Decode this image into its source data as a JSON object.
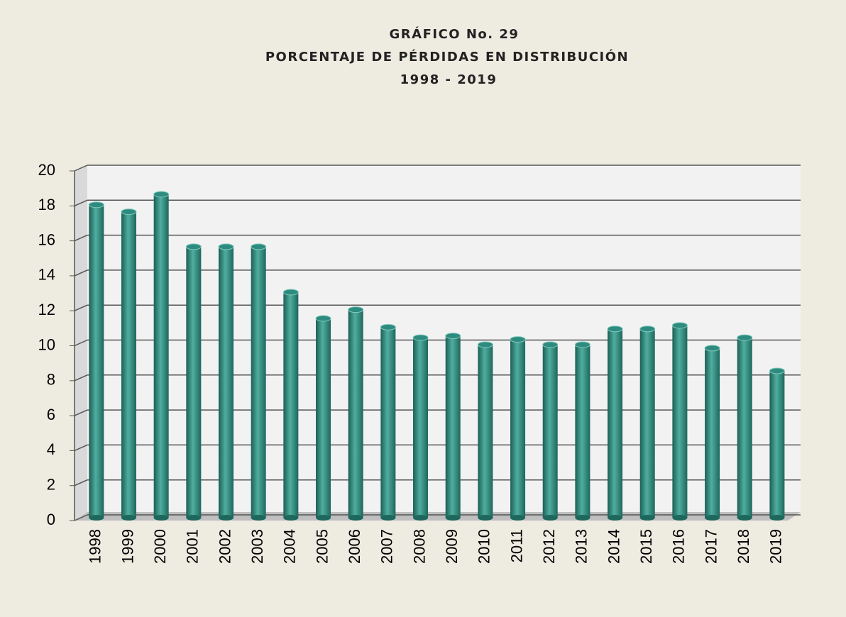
{
  "chart_data": {
    "type": "bar",
    "title": "GRÁFICO No. 29",
    "subtitle": [
      "PORCENTAJE  DE PÉRDIDAS  EN  DISTRIBUCIÓN",
      "1998 - 2019"
    ],
    "categories": [
      "1998",
      "1999",
      "2000",
      "2001",
      "2002",
      "2003",
      "2004",
      "2005",
      "2006",
      "2007",
      "2008",
      "2009",
      "2010",
      "2011",
      "2012",
      "2013",
      "2014",
      "2015",
      "2016",
      "2017",
      "2018",
      "2019"
    ],
    "values": [
      17.9,
      17.5,
      18.5,
      15.5,
      15.5,
      15.5,
      12.9,
      11.4,
      11.9,
      10.9,
      10.3,
      10.4,
      9.9,
      10.2,
      9.9,
      9.9,
      10.8,
      10.8,
      11.0,
      9.7,
      10.3,
      8.4
    ],
    "color": "#2e8b7f",
    "ylim": [
      0,
      20
    ],
    "yticks": [
      0,
      2,
      4,
      6,
      8,
      10,
      12,
      14,
      16,
      18,
      20
    ],
    "grid": true
  }
}
